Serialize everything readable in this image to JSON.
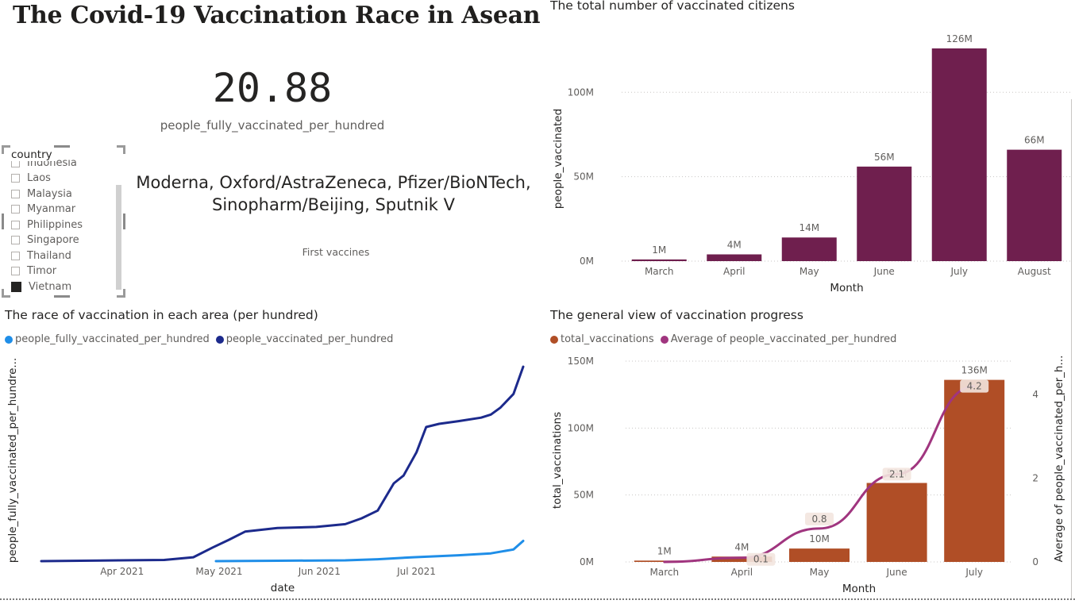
{
  "title": "The Covid-19 Vaccination Race in Asean",
  "kpi": {
    "value": "20.88",
    "label": "people_fully_vaccinated_per_hundred"
  },
  "vaccines": {
    "text": "Moderna, Oxford/AstraZeneca, Pfizer/BioNTech, Sinopharm/Beijing, Sputnik V",
    "label": "First vaccines"
  },
  "slicer": {
    "header": "country",
    "items": [
      {
        "label": "Indonesia",
        "checked": false
      },
      {
        "label": "Laos",
        "checked": false
      },
      {
        "label": "Malaysia",
        "checked": false
      },
      {
        "label": "Myanmar",
        "checked": false
      },
      {
        "label": "Philippines",
        "checked": false
      },
      {
        "label": "Singapore",
        "checked": false
      },
      {
        "label": "Thailand",
        "checked": false
      },
      {
        "label": "Timor",
        "checked": false
      },
      {
        "label": "Vietnam",
        "checked": true
      }
    ]
  },
  "colors": {
    "bar_purple": "#6f1f4e",
    "bar_orange": "#b04e26",
    "line_dark": "#1c2a8c",
    "line_light": "#1f8ee8",
    "line_magenta": "#a0357f"
  },
  "chart_data": [
    {
      "type": "bar",
      "title": "The total number of vaccinated citizens",
      "xlabel": "Month",
      "ylabel": "people_vaccinated",
      "categories": [
        "March",
        "April",
        "May",
        "June",
        "July",
        "August"
      ],
      "values": [
        1,
        4,
        14,
        56,
        126,
        66
      ],
      "data_labels": [
        "1M",
        "4M",
        "14M",
        "56M",
        "126M",
        "66M"
      ],
      "yticks": [
        "0M",
        "50M",
        "100M"
      ],
      "ylim": [
        0,
        126
      ],
      "grid": true
    },
    {
      "type": "line",
      "title": "The race of vaccination in each area (per hundred)",
      "xlabel": "date",
      "ylabel": "people_fully_vaccinated_per_hundre...",
      "xticks": [
        "Apr 2021",
        "May 2021",
        "Jun 2021",
        "Jul 2021"
      ],
      "legend_position": "top-left",
      "series": [
        {
          "name": "people_fully_vaccinated_per_hundred",
          "x": [
            "2021-05-01",
            "2021-05-20",
            "2021-06-10",
            "2021-06-20",
            "2021-07-01",
            "2021-07-15",
            "2021-07-25",
            "2021-08-01",
            "2021-08-04"
          ],
          "y": [
            0.0,
            0.1,
            0.2,
            0.5,
            1.0,
            1.5,
            2.0,
            3.0,
            5.2
          ]
        },
        {
          "name": "people_vaccinated_per_hundred",
          "x": [
            "2021-03-08",
            "2021-03-20",
            "2021-04-01",
            "2021-04-15",
            "2021-04-24",
            "2021-04-30",
            "2021-05-05",
            "2021-05-10",
            "2021-05-20",
            "2021-06-01",
            "2021-06-10",
            "2021-06-15",
            "2021-06-20",
            "2021-06-25",
            "2021-06-28",
            "2021-07-02",
            "2021-07-05",
            "2021-07-09",
            "2021-07-15",
            "2021-07-22",
            "2021-07-25",
            "2021-07-28",
            "2021-08-01",
            "2021-08-04"
          ],
          "y": [
            0.0,
            0.1,
            0.2,
            0.3,
            1.0,
            3.5,
            5.5,
            7.6,
            8.5,
            8.8,
            9.5,
            11.0,
            13.0,
            20.0,
            22.0,
            28.0,
            34.5,
            35.3,
            36.0,
            36.9,
            37.7,
            39.5,
            43.0,
            50.0
          ]
        }
      ]
    },
    {
      "type": "bar",
      "title": "The general view of vaccination progress",
      "xlabel": "Month",
      "ylabel": "total_vaccinations",
      "y2label": "Average of people_vaccinated_per_h...",
      "categories": [
        "March",
        "April",
        "May",
        "June",
        "July"
      ],
      "legend_position": "top-left",
      "yticks": [
        "0M",
        "50M",
        "100M",
        "150M"
      ],
      "y2ticks": [
        "0",
        "2",
        "4"
      ],
      "ylim": [
        0,
        150
      ],
      "y2lim": [
        0,
        4.8
      ],
      "series": [
        {
          "name": "total_vaccinations",
          "type": "bar",
          "values": [
            1,
            4,
            10,
            59,
            136
          ],
          "data_labels": [
            "1M",
            "4M",
            "10M",
            "59M",
            "136M"
          ]
        },
        {
          "name": "Average of people_vaccinated_per_hundred",
          "type": "line",
          "values": [
            0.0,
            0.1,
            0.8,
            2.1,
            4.2
          ],
          "data_labels": [
            "",
            "0.1",
            "0.8",
            "2.1",
            "4.2"
          ]
        }
      ]
    }
  ]
}
